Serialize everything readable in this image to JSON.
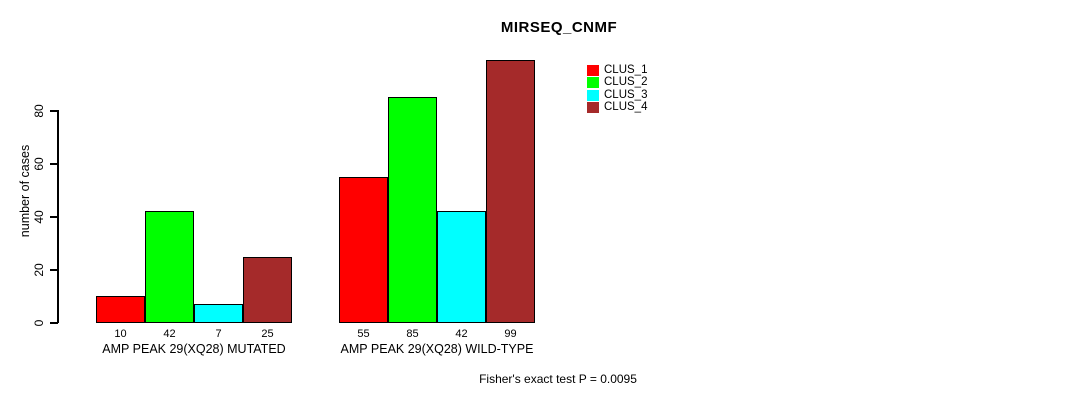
{
  "title": "MIRSEQ_CNMF",
  "chart_data": {
    "type": "bar",
    "title": "MIRSEQ_CNMF",
    "ylabel": "number of cases",
    "xlabel": "",
    "categories": [
      "AMP PEAK 29(XQ28) MUTATED",
      "AMP PEAK 29(XQ28) WILD-TYPE"
    ],
    "series": [
      {
        "name": "CLUS_1",
        "color": "#ff0000",
        "values": [
          10,
          55
        ]
      },
      {
        "name": "CLUS_2",
        "color": "#00ff00",
        "values": [
          42,
          85
        ]
      },
      {
        "name": "CLUS_3",
        "color": "#00ffff",
        "values": [
          7,
          42
        ]
      },
      {
        "name": "CLUS_4",
        "color": "#a52a2a",
        "values": [
          25,
          99
        ]
      }
    ],
    "bar_value_labels": [
      [
        10,
        42,
        7,
        25
      ],
      [
        55,
        85,
        42,
        99
      ]
    ],
    "yticks": [
      0,
      20,
      40,
      60,
      80
    ],
    "ylim": [
      0,
      100
    ],
    "grid": false,
    "legend_position": "top-right",
    "legend_entries": [
      "CLUS_1",
      "CLUS_2",
      "CLUS_3",
      "CLUS_4"
    ],
    "annotation": "Fisher's exact test P = 0.0095"
  }
}
